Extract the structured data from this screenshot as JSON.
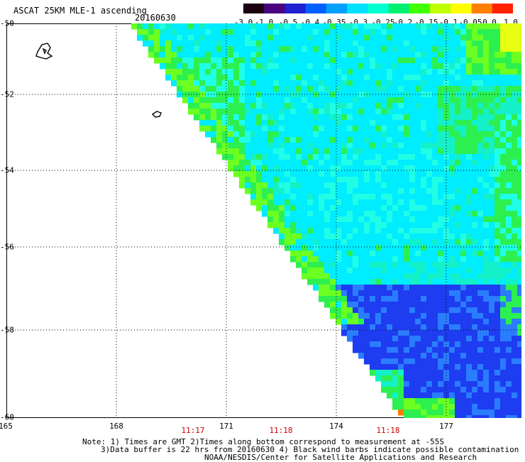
{
  "header": {
    "title": "ASCAT 25KM MLE-1 ascending",
    "date": "20160630"
  },
  "colorbar": {
    "labels": [
      "-3.0",
      "-1.0",
      "-0.5",
      "-0.4",
      "-0.35",
      "-0.3",
      "-0.25",
      "-0.2",
      "-0.15",
      "-0.1",
      "-0.05",
      "0.0",
      "1.0"
    ],
    "colors": [
      "#1a0010",
      "#4a0080",
      "#2020d0",
      "#0060ff",
      "#00a0ff",
      "#00e0ff",
      "#00ffd0",
      "#00f070",
      "#40ff00",
      "#c0ff00",
      "#ffff00",
      "#ff8000",
      "#ff2000"
    ]
  },
  "axes": {
    "lat_labels": [
      "-50",
      "-52",
      "-54",
      "-56",
      "-58",
      "-60"
    ],
    "lon_labels": [
      "165",
      "168",
      "171",
      "174",
      "177"
    ],
    "time_labels": [
      "11:17",
      "11:18",
      "11:18"
    ]
  },
  "notes": {
    "line1": "Note: 1) Times are GMT 2)Times along bottom correspond to measurement at -55S",
    "line2": "3)Data buffer is 22 hrs from 20160630 4) Black wind barbs indicate possible contamination",
    "line3": "NOAA/NESDIS/Center for Satellite Applications and Research"
  }
}
